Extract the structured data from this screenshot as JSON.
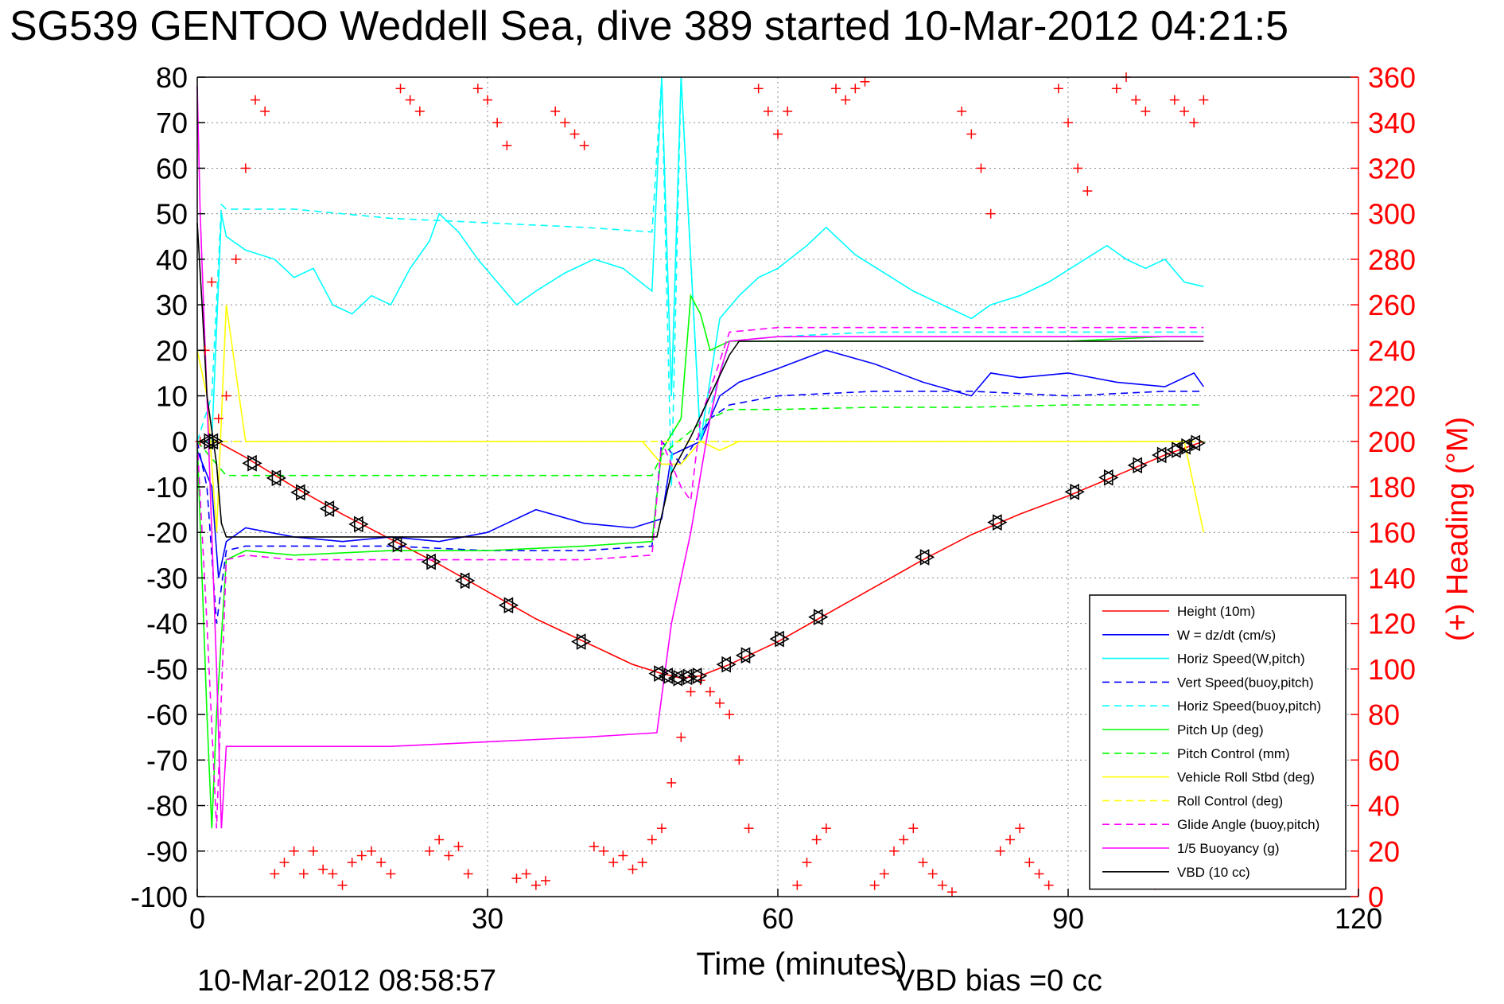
{
  "chart_data": {
    "type": "line",
    "title": "SG539 GENTOO Weddell Sea, dive 389 started 10-Mar-2012 04:21:5",
    "xlabel": "Time (minutes)",
    "ylabel_right": "(+) Heading (°M)",
    "footer_left": "10-Mar-2012 08:58:57",
    "footer_right": "VBD bias =0 cc",
    "xlim": [
      0,
      120
    ],
    "ylim": [
      -100,
      80
    ],
    "y2lim": [
      0,
      360
    ],
    "xticks": [
      "0",
      "30",
      "60",
      "90",
      "120"
    ],
    "yticks": [
      "80",
      "70",
      "60",
      "50",
      "40",
      "30",
      "20",
      "10",
      "0",
      "-10",
      "-20",
      "-30",
      "-40",
      "-50",
      "-60",
      "-70",
      "-80",
      "-90",
      "-100"
    ],
    "y2ticks": [
      "360",
      "340",
      "320",
      "300",
      "280",
      "260",
      "240",
      "220",
      "200",
      "180",
      "160",
      "140",
      "120",
      "100",
      "80",
      "60",
      "40",
      "20",
      "0"
    ],
    "grid": true,
    "legend_position": "bottom-right",
    "colors": {
      "red": "#ff0000",
      "blue": "#0000ff",
      "cyan": "#00ffff",
      "green": "#00ff00",
      "yellow": "#ffff00",
      "magenta": "#ff00ff",
      "black": "#000000"
    },
    "series": [
      {
        "name": "Height (10m)",
        "color": "#ff0000",
        "dash": false,
        "x": [
          0,
          2,
          5,
          10,
          15,
          20,
          25,
          30,
          35,
          40,
          45,
          48,
          50,
          52,
          55,
          60,
          65,
          70,
          75,
          80,
          85,
          90,
          95,
          100,
          104
        ],
        "y": [
          0,
          0,
          -3.5,
          -10,
          -16,
          -21.5,
          -27,
          -33,
          -39,
          -44,
          -49,
          -51,
          -52,
          -51.5,
          -49,
          -44,
          -38,
          -32,
          -26,
          -20.5,
          -16,
          -12,
          -7.5,
          -3,
          0
        ]
      },
      {
        "name": "W = dz/dt (cm/s)",
        "color": "#0000ff",
        "dash": false,
        "x": [
          0,
          1.5,
          2.2,
          3,
          5,
          10,
          15,
          20,
          25,
          30,
          35,
          40,
          45,
          48,
          49,
          52,
          54,
          56,
          60,
          65,
          70,
          75,
          80,
          82,
          85,
          90,
          95,
          100,
          103,
          104
        ],
        "y": [
          -2,
          -10,
          -30,
          -22,
          -19,
          -21,
          -22,
          -21,
          -22,
          -20,
          -15,
          -18,
          -19,
          -17,
          -3,
          0,
          10,
          13,
          16,
          20,
          17,
          13,
          10,
          15,
          14,
          15,
          13,
          12,
          15,
          12
        ]
      },
      {
        "name": "Horiz Speed(W,pitch)",
        "color": "#00ffff",
        "dash": false,
        "x": [
          0,
          1.5,
          2.5,
          3,
          5,
          8,
          10,
          12,
          14,
          16,
          18,
          20,
          22,
          24,
          25,
          27,
          29,
          31,
          33,
          35,
          38,
          41,
          44,
          47,
          48,
          49,
          50,
          52,
          54,
          56,
          58,
          60,
          63,
          65,
          68,
          71,
          74,
          77,
          80,
          82,
          85,
          88,
          91,
          94,
          96,
          98,
          100,
          102,
          104
        ],
        "y": [
          0,
          0,
          50,
          45,
          42,
          40,
          36,
          38,
          30,
          28,
          32,
          30,
          38,
          44,
          50,
          46,
          40,
          35,
          30,
          33,
          37,
          40,
          38,
          33,
          80,
          10,
          80,
          0,
          27,
          32,
          36,
          38,
          43,
          47,
          41,
          37,
          33,
          30,
          27,
          30,
          32,
          35,
          39,
          43,
          40,
          38,
          40,
          35,
          34
        ]
      },
      {
        "name": "Vert Speed(buoy,pitch)",
        "color": "#0000ff",
        "dash": true,
        "x": [
          0,
          1,
          2,
          3,
          5,
          10,
          20,
          30,
          40,
          47,
          48,
          50,
          53,
          55,
          60,
          70,
          80,
          90,
          100,
          104
        ],
        "y": [
          0,
          -10,
          -40,
          -24,
          -23,
          -23,
          -23,
          -24,
          -24,
          -23,
          0,
          -5,
          5,
          8,
          10,
          11,
          11,
          10,
          11,
          11
        ]
      },
      {
        "name": "Horiz Speed(buoy,pitch)",
        "color": "#00ffff",
        "dash": true,
        "x": [
          0,
          1.5,
          2.5,
          3,
          10,
          20,
          30,
          40,
          47,
          48,
          49,
          50,
          52,
          55,
          60,
          70,
          80,
          90,
          100,
          104
        ],
        "y": [
          0,
          10,
          52,
          51,
          51,
          49,
          48,
          47,
          46,
          80,
          -10,
          80,
          0,
          22,
          23,
          24,
          24,
          24,
          24,
          24
        ]
      },
      {
        "name": "Pitch Up (deg)",
        "color": "#00ff00",
        "dash": false,
        "x": [
          0,
          1,
          1.5,
          2,
          3,
          5,
          10,
          20,
          30,
          40,
          47,
          48,
          50,
          51,
          52,
          53,
          55,
          60,
          70,
          80,
          90,
          100,
          104
        ],
        "y": [
          0,
          -60,
          -85,
          -60,
          -26,
          -24,
          -25,
          -24,
          -24,
          -23,
          -22,
          -2,
          5,
          32,
          28,
          20,
          22,
          22,
          22,
          22,
          22,
          23,
          23
        ]
      },
      {
        "name": "Pitch Control (mm)",
        "color": "#00ff00",
        "dash": true,
        "x": [
          0,
          2,
          3,
          10,
          20,
          30,
          40,
          47,
          48,
          52,
          55,
          60,
          70,
          80,
          90,
          100,
          104
        ],
        "y": [
          0,
          -5,
          -7.5,
          -7.5,
          -7.5,
          -7.5,
          -7.5,
          -7.5,
          -3,
          4,
          7,
          7,
          7.5,
          7.5,
          8,
          8,
          8
        ]
      },
      {
        "name": "Vehicle Roll Stbd (deg)",
        "color": "#ffff00",
        "dash": false,
        "x": [
          0,
          1,
          2,
          3,
          5,
          7,
          9,
          11,
          13,
          15,
          17,
          20,
          22,
          24,
          26,
          28,
          30,
          32,
          34,
          36,
          38,
          40,
          42,
          44,
          46,
          48,
          50,
          52,
          54,
          56,
          58,
          60,
          62,
          64,
          66,
          68,
          70,
          72,
          74,
          76,
          78,
          80,
          82,
          84,
          86,
          88,
          90,
          92,
          94,
          96,
          98,
          100,
          102,
          104
        ],
        "y": [
          20,
          10,
          -20,
          30,
          0,
          0,
          0,
          0,
          0,
          0,
          0,
          0,
          0,
          0,
          0,
          0,
          0,
          0,
          0,
          0,
          0,
          0,
          0,
          0,
          0,
          -5,
          -5,
          0,
          -2,
          0,
          0,
          0,
          0,
          0,
          0,
          0,
          0,
          0,
          0,
          0,
          0,
          0,
          0,
          0,
          0,
          0,
          0,
          0,
          0,
          0,
          0,
          0,
          0,
          -20
        ]
      },
      {
        "name": "Roll Control (deg)",
        "color": "#ffff00",
        "dash": true,
        "x": [
          0,
          2,
          3,
          10,
          20,
          30,
          40,
          47,
          48,
          52,
          55,
          60,
          70,
          80,
          90,
          100,
          104
        ],
        "y": [
          0,
          0,
          0,
          0,
          0,
          0,
          0,
          0,
          0,
          0,
          0,
          0,
          0,
          0,
          0,
          0,
          0
        ]
      },
      {
        "name": "Glide Angle (buoy,pitch)",
        "color": "#ff00ff",
        "dash": true,
        "x": [
          0,
          1,
          2,
          3,
          5,
          10,
          20,
          30,
          40,
          47,
          48,
          50,
          51,
          52,
          55,
          60,
          70,
          80,
          90,
          100,
          104
        ],
        "y": [
          0,
          -40,
          -85,
          -26,
          -25,
          -26,
          -26,
          -26,
          -26,
          -25,
          0,
          -10,
          -13,
          5,
          24,
          25,
          25,
          25,
          25,
          25,
          25
        ]
      },
      {
        "name": "1/5 Buoyancy (g)",
        "color": "#ff00ff",
        "dash": false,
        "x": [
          0,
          0.3,
          1,
          2,
          2.5,
          3,
          10,
          20,
          30,
          40,
          47.5,
          49,
          51,
          53,
          54,
          55,
          60,
          70,
          80,
          90,
          100,
          104
        ],
        "y": [
          78,
          50,
          10,
          -50,
          -85,
          -67,
          -67,
          -67,
          -66,
          -65,
          -64,
          -40,
          -20,
          5,
          15,
          22,
          23,
          23,
          23,
          23,
          23,
          23
        ]
      },
      {
        "name": "VBD (10 cc)",
        "color": "#000000",
        "dash": false,
        "x": [
          0,
          0.5,
          1,
          2,
          2.5,
          3,
          10,
          20,
          30,
          40,
          47.5,
          49,
          51,
          53,
          55,
          56,
          60,
          70,
          80,
          90,
          100,
          104
        ],
        "y": [
          48,
          30,
          10,
          -5,
          -18,
          -21,
          -21,
          -21,
          -21,
          -21,
          -21,
          -7,
          1,
          10,
          19,
          22,
          22,
          22,
          22,
          22,
          22,
          22
        ]
      }
    ],
    "heading": {
      "name": "(+) Heading (°M)",
      "color": "#ff0000",
      "marker": "+",
      "x": [
        0.3,
        0.8,
        1.5,
        2.2,
        3,
        4,
        5,
        6,
        7,
        8,
        9,
        10,
        11,
        12,
        13,
        14,
        15,
        16,
        17,
        18,
        19,
        20,
        21,
        22,
        23,
        24,
        25,
        26,
        27,
        28,
        29,
        30,
        31,
        32,
        33,
        34,
        35,
        36,
        37,
        38,
        39,
        40,
        41,
        42,
        43,
        44,
        45,
        46,
        47,
        48,
        49,
        50,
        51,
        52,
        53,
        54,
        55,
        56,
        57,
        58,
        59,
        60,
        61,
        62,
        63,
        64,
        65,
        66,
        67,
        68,
        69,
        70,
        71,
        72,
        73,
        74,
        75,
        76,
        77,
        78,
        79,
        80,
        81,
        82,
        83,
        84,
        85,
        86,
        87,
        88,
        89,
        90,
        91,
        92,
        93,
        94,
        95,
        96,
        97,
        98,
        99,
        100,
        101,
        102,
        103,
        104
      ],
      "y": [
        200,
        240,
        270,
        210,
        220,
        280,
        320,
        350,
        345,
        10,
        15,
        20,
        10,
        20,
        12,
        10,
        5,
        15,
        18,
        20,
        15,
        10,
        355,
        350,
        345,
        20,
        25,
        18,
        22,
        10,
        355,
        350,
        340,
        330,
        8,
        10,
        5,
        7,
        345,
        340,
        335,
        330,
        22,
        20,
        15,
        18,
        12,
        15,
        25,
        30,
        50,
        70,
        90,
        95,
        90,
        85,
        80,
        60,
        30,
        355,
        345,
        335,
        345,
        5,
        15,
        25,
        30,
        355,
        350,
        355,
        358,
        5,
        10,
        20,
        25,
        30,
        15,
        10,
        5,
        2,
        345,
        335,
        320,
        300,
        20,
        25,
        30,
        15,
        10,
        5,
        355,
        340,
        320,
        310,
        20,
        15,
        355,
        360,
        350,
        345,
        5,
        10,
        350,
        345,
        340,
        350
      ]
    },
    "height_markers": {
      "x": [
        1.5,
        2,
        6,
        8.5,
        11,
        14,
        17,
        21,
        24.5,
        28,
        32.5,
        40,
        48,
        49,
        50,
        51,
        52,
        55,
        57,
        60.5,
        64.5,
        75.5,
        83,
        91,
        94.5,
        97.5,
        100,
        101.5,
        102.5,
        103.5
      ]
    }
  }
}
